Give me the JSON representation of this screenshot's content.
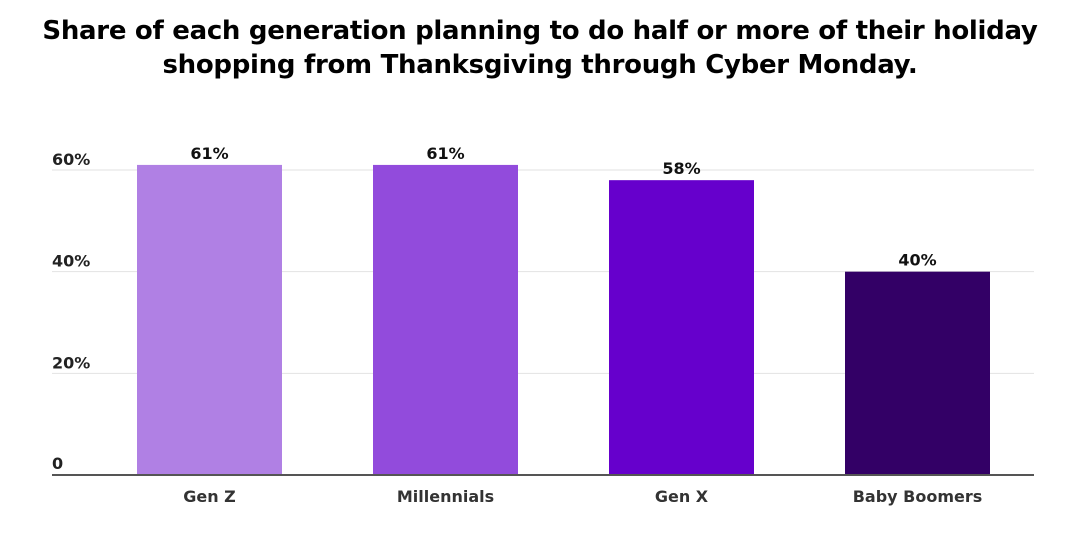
{
  "chart_data": {
    "type": "bar",
    "title_lines": [
      "Share of each generation planning to do half or more of their holiday",
      "shopping from Thanksgiving through Cyber Monday."
    ],
    "categories": [
      "Gen Z",
      "Millennials",
      "Gen X",
      "Baby Boomers"
    ],
    "values": [
      61,
      61,
      58,
      40
    ],
    "data_labels": [
      "61%",
      "61%",
      "58%",
      "40%"
    ],
    "colors": [
      "#b080e4",
      "#924bdc",
      "#6600cc",
      "#330066"
    ],
    "y_ticks": [
      0,
      20,
      40,
      60
    ],
    "y_tick_labels": [
      "0",
      "20%",
      "40%",
      "60%"
    ],
    "ylim": [
      0,
      60
    ],
    "xlabel": "",
    "ylabel": "",
    "grid": true
  }
}
